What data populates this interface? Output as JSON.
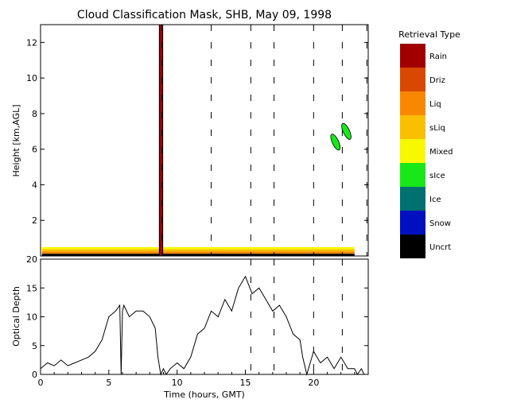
{
  "chart_data": [
    {
      "type": "heatmap",
      "title": "Cloud Classification Mask, SHB, May 09, 1998",
      "ylabel": "Height [km,AGL]",
      "xlim": [
        0,
        24
      ],
      "ylim": [
        0,
        13
      ],
      "yticks": [
        2,
        4,
        6,
        8,
        10,
        12
      ],
      "legend": {
        "title": "Retrieval Type",
        "position": "right",
        "entries": [
          {
            "label": "Rain",
            "color": "#a00000"
          },
          {
            "label": "Driz",
            "color": "#d84800"
          },
          {
            "label": "Liq",
            "color": "#f88800"
          },
          {
            "label": "sLiq",
            "color": "#f8c000"
          },
          {
            "label": "Mixed",
            "color": "#f8f800"
          },
          {
            "label": "sIce",
            "color": "#18e818"
          },
          {
            "label": "Ice",
            "color": "#007070"
          },
          {
            "label": "Snow",
            "color": "#0010c0"
          },
          {
            "label": "Uncrt",
            "color": "#000000"
          }
        ]
      },
      "dashed_times": [
        8.9,
        12.5,
        15.4,
        17.1,
        20.0,
        22.1,
        23.9
      ],
      "rain_column": {
        "x_start": 8.7,
        "x_end": 8.95,
        "type": "Rain"
      },
      "low_cloud_layer": {
        "x_start": 0.1,
        "x_end": 23.0,
        "height_min": 0.0,
        "height_max": 0.5,
        "types": [
          "Mixed",
          "sLiq",
          "Liq",
          "Uncrt"
        ]
      },
      "ice_cloud_patches": [
        {
          "x_center": 21.6,
          "height_center": 6.4,
          "type": "sIce"
        },
        {
          "x_center": 22.4,
          "height_center": 7.0,
          "type": "sIce"
        }
      ]
    },
    {
      "type": "line",
      "xlabel": "Time (hours, GMT)",
      "ylabel": "Optical Depth",
      "xlim": [
        0,
        24
      ],
      "ylim": [
        0,
        20
      ],
      "xticks": [
        0,
        5,
        10,
        15,
        20
      ],
      "yticks": [
        0,
        5,
        10,
        15,
        20
      ],
      "dashed_times": [
        15.4,
        17.1,
        20.0,
        22.1
      ],
      "series": [
        {
          "x": [
            0.0,
            0.5,
            1.0,
            1.5,
            2.0,
            2.5,
            3.0,
            3.5,
            4.0,
            4.5,
            5.0,
            5.5,
            5.8,
            5.9,
            6.0,
            6.1,
            6.5,
            7.0,
            7.5,
            8.0,
            8.4,
            8.6,
            8.8,
            9.0,
            9.2,
            9.5,
            10.0,
            10.5,
            11.0,
            11.5,
            12.0,
            12.5,
            13.0,
            13.5,
            14.0,
            14.5,
            15.0,
            15.5,
            16.0,
            16.5,
            17.0,
            17.5,
            18.0,
            18.5,
            19.0,
            19.2,
            19.5,
            20.0,
            20.5,
            21.0,
            21.5,
            22.0,
            22.5,
            23.0,
            23.2,
            23.5,
            23.7
          ],
          "y": [
            1,
            2,
            1.5,
            2.5,
            1.5,
            2,
            2.5,
            3,
            4,
            6,
            10,
            11,
            12,
            0,
            11,
            12,
            10,
            11,
            11,
            10,
            8,
            3,
            0,
            1,
            0,
            1,
            2,
            1,
            3,
            7,
            8,
            11,
            10,
            13,
            11,
            15,
            17,
            14,
            15,
            13,
            11,
            12,
            10,
            7,
            6,
            3,
            0,
            4,
            2,
            3,
            1,
            3,
            1,
            1,
            0,
            1,
            0
          ]
        }
      ]
    }
  ]
}
